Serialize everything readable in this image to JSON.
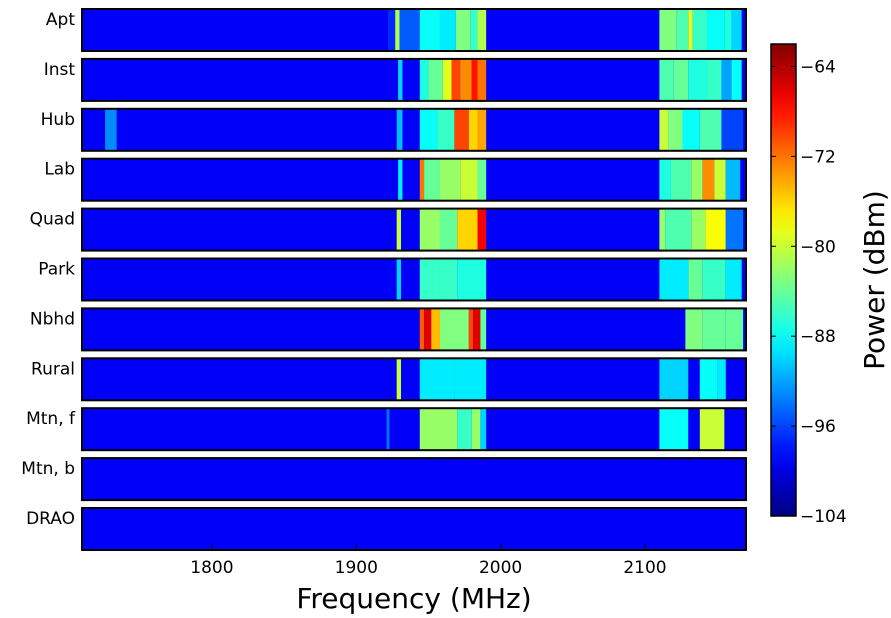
{
  "chart_data": {
    "type": "heatmap",
    "xlabel": "Frequency (MHz)",
    "xlim": [
      1710,
      2170
    ],
    "x_ticks": [
      "1800",
      "1900",
      "2000",
      "2100"
    ],
    "x_tick_values": [
      1800,
      1900,
      2000,
      2100
    ],
    "colorbar": {
      "label": "Power (dBm)",
      "range": [
        -104,
        -62
      ],
      "ticks": [
        "−64",
        "−72",
        "−80",
        "−88",
        "−96",
        "−104"
      ],
      "tick_values": [
        -64,
        -72,
        -80,
        -88,
        -96,
        -104
      ],
      "colormap": "jet"
    },
    "baseline_dBm": -99,
    "rows": [
      {
        "label": "Apt",
        "bands": [
          [
            1922,
            1927,
            -97
          ],
          [
            1927,
            1930,
            -81
          ],
          [
            1930,
            1944,
            -95
          ],
          [
            1944,
            1958,
            -88
          ],
          [
            1958,
            1969,
            -89
          ],
          [
            1969,
            1979,
            -83
          ],
          [
            1979,
            1984,
            -86
          ],
          [
            1984,
            1990,
            -81
          ],
          [
            2110,
            2122,
            -83
          ],
          [
            2122,
            2130,
            -85
          ],
          [
            2130,
            2133,
            -79
          ],
          [
            2133,
            2143,
            -86
          ],
          [
            2143,
            2155,
            -88
          ],
          [
            2155,
            2160,
            -87
          ],
          [
            2160,
            2167,
            -90
          ]
        ]
      },
      {
        "label": "Inst",
        "bands": [
          [
            1929,
            1932,
            -90
          ],
          [
            1944,
            1950,
            -87
          ],
          [
            1950,
            1960,
            -84
          ],
          [
            1960,
            1966,
            -79
          ],
          [
            1966,
            1972,
            -70
          ],
          [
            1972,
            1980,
            -73
          ],
          [
            1980,
            1984,
            -68
          ],
          [
            1984,
            1990,
            -72
          ],
          [
            2110,
            2120,
            -85
          ],
          [
            2120,
            2130,
            -84
          ],
          [
            2130,
            2143,
            -87
          ],
          [
            2143,
            2153,
            -86
          ],
          [
            2153,
            2160,
            -92
          ],
          [
            2160,
            2167,
            -88
          ]
        ]
      },
      {
        "label": "Hub",
        "bands": [
          [
            1726,
            1734,
            -93
          ],
          [
            1928,
            1932,
            -91
          ],
          [
            1944,
            1956,
            -88
          ],
          [
            1956,
            1968,
            -86
          ],
          [
            1968,
            1978,
            -70
          ],
          [
            1978,
            1984,
            -76
          ],
          [
            1984,
            1990,
            -74
          ],
          [
            2110,
            2116,
            -80
          ],
          [
            2116,
            2126,
            -83
          ],
          [
            2126,
            2138,
            -88
          ],
          [
            2138,
            2153,
            -85
          ],
          [
            2153,
            2168,
            -96
          ]
        ]
      },
      {
        "label": "Lab",
        "bands": [
          [
            1929,
            1932,
            -89
          ],
          [
            1944,
            1947,
            -72
          ],
          [
            1947,
            1958,
            -84
          ],
          [
            1958,
            1972,
            -82
          ],
          [
            1972,
            1984,
            -80
          ],
          [
            1984,
            1990,
            -84
          ],
          [
            2110,
            2118,
            -87
          ],
          [
            2118,
            2132,
            -85
          ],
          [
            2132,
            2140,
            -82
          ],
          [
            2140,
            2148,
            -73
          ],
          [
            2148,
            2156,
            -80
          ],
          [
            2156,
            2166,
            -91
          ]
        ]
      },
      {
        "label": "Quad",
        "bands": [
          [
            1928,
            1931,
            -80
          ],
          [
            1944,
            1958,
            -82
          ],
          [
            1958,
            1970,
            -84
          ],
          [
            1970,
            1984,
            -76
          ],
          [
            1984,
            1990,
            -67
          ],
          [
            2110,
            2114,
            -82
          ],
          [
            2114,
            2132,
            -85
          ],
          [
            2132,
            2142,
            -82
          ],
          [
            2142,
            2156,
            -78
          ],
          [
            2156,
            2168,
            -94
          ]
        ]
      },
      {
        "label": "Park",
        "bands": [
          [
            1928,
            1931,
            -90
          ],
          [
            1944,
            1958,
            -86
          ],
          [
            1958,
            1970,
            -86
          ],
          [
            1970,
            1990,
            -87
          ],
          [
            2110,
            2130,
            -89
          ],
          [
            2130,
            2140,
            -84
          ],
          [
            2140,
            2156,
            -86
          ],
          [
            2156,
            2167,
            -89
          ]
        ]
      },
      {
        "label": "Nbhd",
        "bands": [
          [
            1944,
            1947,
            -71
          ],
          [
            1947,
            1952,
            -66
          ],
          [
            1952,
            1958,
            -75
          ],
          [
            1958,
            1978,
            -83
          ],
          [
            1978,
            1981,
            -70
          ],
          [
            1981,
            1986,
            -66
          ],
          [
            1986,
            1990,
            -84
          ],
          [
            2128,
            2140,
            -83
          ],
          [
            2140,
            2156,
            -84
          ],
          [
            2156,
            2168,
            -84
          ]
        ]
      },
      {
        "label": "Rural",
        "bands": [
          [
            1928,
            1931,
            -80
          ],
          [
            1944,
            1968,
            -89
          ],
          [
            1968,
            1990,
            -89
          ],
          [
            2110,
            2130,
            -90
          ],
          [
            2138,
            2150,
            -88
          ],
          [
            2150,
            2156,
            -89
          ]
        ]
      },
      {
        "label": "Mtn, f",
        "bands": [
          [
            1921,
            1923,
            -94
          ],
          [
            1944,
            1970,
            -82
          ],
          [
            1970,
            1980,
            -86
          ],
          [
            1980,
            1986,
            -82
          ],
          [
            1986,
            1990,
            -90
          ],
          [
            2110,
            2130,
            -88
          ],
          [
            2138,
            2155,
            -80
          ]
        ]
      },
      {
        "label": "Mtn, b",
        "bands": []
      },
      {
        "label": "DRAO",
        "bands": []
      }
    ]
  }
}
